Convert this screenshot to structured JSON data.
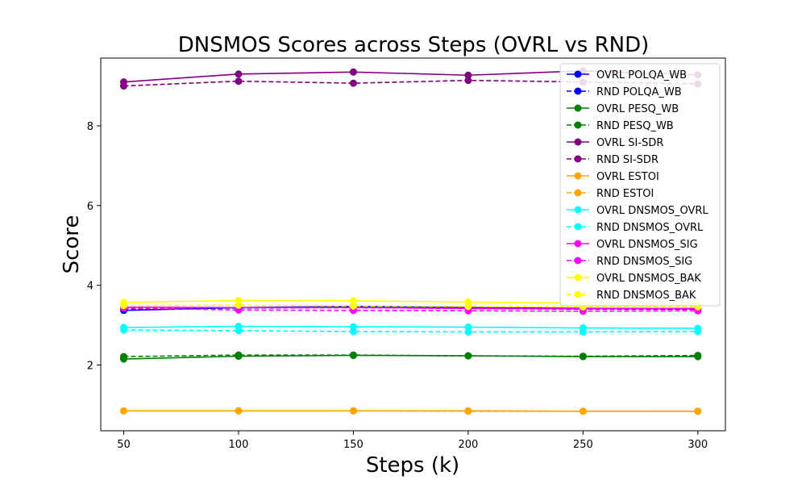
{
  "chart_data": {
    "type": "line",
    "title": "DNSMOS Scores across Steps (OVRL vs RND)",
    "xlabel": "Steps (k)",
    "ylabel": "Score",
    "x": [
      50,
      100,
      150,
      200,
      250,
      300
    ],
    "xlim": [
      40,
      312
    ],
    "ylim": [
      0.35,
      9.7
    ],
    "xticks": [
      "50",
      "100",
      "150",
      "200",
      "250",
      "300"
    ],
    "yticks": [
      "2",
      "4",
      "6",
      "8"
    ],
    "legend_position": "top-right",
    "grid": false,
    "series": [
      {
        "name": "OVRL POLQA_WB",
        "color": "#0000ff",
        "dashed": false,
        "values": [
          3.37,
          3.44,
          3.47,
          3.44,
          3.42,
          3.41
        ]
      },
      {
        "name": "RND POLQA_WB",
        "color": "#0000ff",
        "dashed": true,
        "values": [
          3.41,
          3.43,
          3.44,
          3.42,
          3.4,
          3.4
        ]
      },
      {
        "name": "OVRL PESQ_WB",
        "color": "#008000",
        "dashed": false,
        "values": [
          2.15,
          2.22,
          2.24,
          2.23,
          2.21,
          2.21
        ]
      },
      {
        "name": "RND PESQ_WB",
        "color": "#008000",
        "dashed": true,
        "values": [
          2.21,
          2.25,
          2.25,
          2.23,
          2.22,
          2.24
        ]
      },
      {
        "name": "OVRL SI-SDR",
        "color": "#800080",
        "dashed": false,
        "values": [
          9.1,
          9.3,
          9.35,
          9.27,
          9.38,
          9.28
        ]
      },
      {
        "name": "RND SI-SDR",
        "color": "#800080",
        "dashed": true,
        "values": [
          9.0,
          9.12,
          9.07,
          9.14,
          9.1,
          9.05
        ]
      },
      {
        "name": "OVRL ESTOI",
        "color": "#ffa500",
        "dashed": false,
        "values": [
          0.85,
          0.85,
          0.85,
          0.85,
          0.84,
          0.84
        ]
      },
      {
        "name": "RND ESTOI",
        "color": "#ffa500",
        "dashed": true,
        "values": [
          0.85,
          0.85,
          0.85,
          0.84,
          0.84,
          0.84
        ]
      },
      {
        "name": "OVRL DNSMOS_OVRL",
        "color": "#00ffff",
        "dashed": false,
        "values": [
          2.94,
          2.97,
          2.96,
          2.95,
          2.93,
          2.92
        ]
      },
      {
        "name": "RND DNSMOS_OVRL",
        "color": "#00ffff",
        "dashed": true,
        "values": [
          2.88,
          2.86,
          2.84,
          2.83,
          2.83,
          2.84
        ]
      },
      {
        "name": "OVRL DNSMOS_SIG",
        "color": "#ff00ff",
        "dashed": false,
        "values": [
          3.45,
          3.44,
          3.44,
          3.42,
          3.41,
          3.42
        ]
      },
      {
        "name": "RND DNSMOS_SIG",
        "color": "#ff00ff",
        "dashed": true,
        "values": [
          3.43,
          3.38,
          3.37,
          3.36,
          3.35,
          3.36
        ]
      },
      {
        "name": "OVRL DNSMOS_BAK",
        "color": "#ffff00",
        "dashed": false,
        "values": [
          3.57,
          3.62,
          3.61,
          3.58,
          3.55,
          3.55
        ]
      },
      {
        "name": "RND DNSMOS_BAK",
        "color": "#ffff00",
        "dashed": true,
        "values": [
          3.49,
          3.5,
          3.48,
          3.47,
          3.46,
          3.46
        ]
      }
    ]
  }
}
